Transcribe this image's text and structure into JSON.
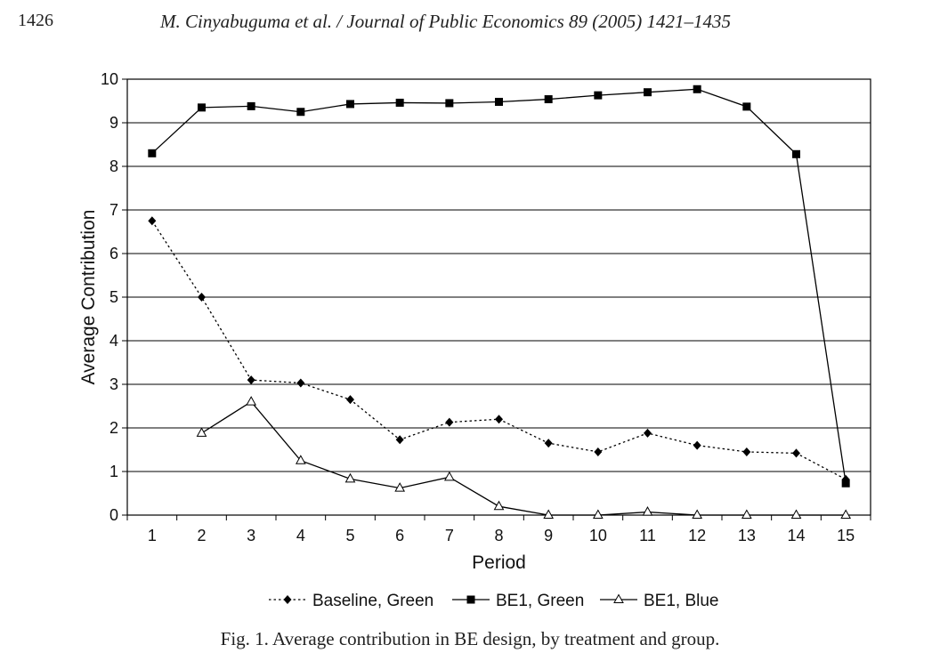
{
  "header": {
    "page_number": "1426",
    "running_title": "M. Cinyabuguma et al. / Journal of Public Economics 89 (2005) 1421–1435"
  },
  "caption": "Fig. 1. Average contribution in BE design, by treatment and group.",
  "chart_data": {
    "type": "line",
    "title": "",
    "xlabel": "Period",
    "ylabel": "Average Contribution",
    "categories": [
      "1",
      "2",
      "3",
      "4",
      "5",
      "6",
      "7",
      "8",
      "9",
      "10",
      "11",
      "12",
      "13",
      "14",
      "15"
    ],
    "ylim": [
      0,
      10
    ],
    "yticks": [
      "0",
      "1",
      "2",
      "3",
      "4",
      "5",
      "6",
      "7",
      "8",
      "9",
      "10"
    ],
    "grid": "horizontal",
    "legend_position": "bottom",
    "series": [
      {
        "name": "Baseline, Green",
        "style": "dotted",
        "marker": "diamond",
        "color": "#000000",
        "values": [
          6.75,
          5.0,
          3.1,
          3.03,
          2.65,
          1.73,
          2.13,
          2.2,
          1.65,
          1.45,
          1.88,
          1.6,
          1.45,
          1.42,
          0.82
        ]
      },
      {
        "name": "BE1, Green",
        "style": "solid",
        "marker": "square",
        "color": "#000000",
        "values": [
          8.3,
          9.35,
          9.38,
          9.25,
          9.43,
          9.46,
          9.45,
          9.48,
          9.54,
          9.63,
          9.7,
          9.77,
          9.37,
          8.28,
          0.73
        ]
      },
      {
        "name": "BE1, Blue",
        "style": "solid",
        "marker": "triangle-open",
        "color": "#000000",
        "values": [
          null,
          1.88,
          2.6,
          1.25,
          0.83,
          0.62,
          0.87,
          0.2,
          0.0,
          0.0,
          0.07,
          0.0,
          0.0,
          0.0,
          0.0
        ]
      }
    ]
  }
}
